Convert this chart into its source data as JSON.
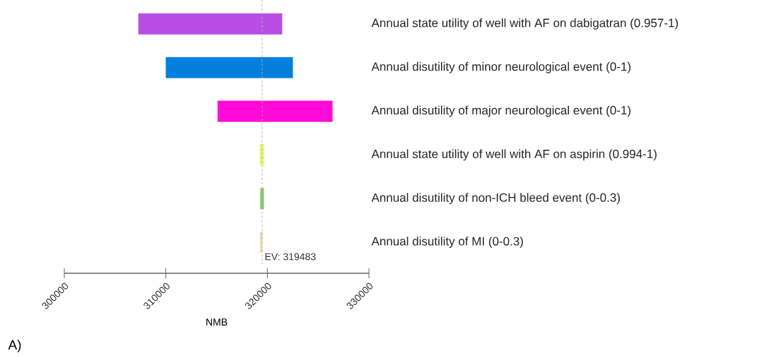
{
  "chart_data": {
    "type": "bar",
    "orientation": "horizontal",
    "xlabel": "NMB",
    "categories": [
      "Annual state utility of well with AF on dabigatran (0.957-1)",
      "Annual disutility of minor neurological event (0-1)",
      "Annual disutility of major neurological event (0-1)",
      "Annual state utility of well with AF on aspirin (0.994-1)",
      "Annual disutility of non-ICH bleed event (0-0.3)",
      "Annual disutility of MI (0-0.3)"
    ],
    "base": [
      307300,
      310000,
      315100,
      319250,
      319300,
      319300
    ],
    "values": [
      14150,
      12500,
      11300,
      400,
      350,
      200
    ],
    "colors": [
      "#b94de4",
      "#0380db",
      "#ff0ad8",
      "#e6f76a",
      "#8ec66e",
      "#e8d8a0"
    ],
    "xlim": [
      300000,
      330000
    ],
    "xticks": [
      300000,
      310000,
      320000,
      330000
    ],
    "ref_lines": [
      {
        "axis": "x",
        "value": 319483,
        "label": "EV: 319483",
        "color": "#b0b0b0",
        "line_style": "dashed"
      }
    ],
    "annotations": [
      "A)"
    ]
  }
}
